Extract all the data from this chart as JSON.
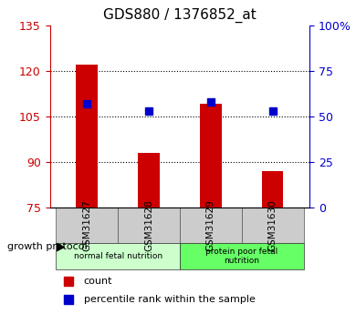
{
  "title": "GDS880 / 1376852_at",
  "samples": [
    "GSM31627",
    "GSM31628",
    "GSM31629",
    "GSM31630"
  ],
  "counts": [
    122,
    93,
    109,
    87
  ],
  "percentiles": [
    57,
    53,
    58,
    53
  ],
  "left_ylim": [
    75,
    135
  ],
  "left_yticks": [
    75,
    90,
    105,
    120,
    135
  ],
  "right_ylim": [
    0,
    100
  ],
  "right_yticks": [
    0,
    25,
    50,
    75,
    100
  ],
  "right_yticklabels": [
    "0",
    "25",
    "50",
    "75",
    "100%"
  ],
  "bar_color": "#cc0000",
  "marker_color": "#0000cc",
  "bar_width": 0.35,
  "groups": [
    {
      "label": "normal fetal nutrition",
      "indices": [
        0,
        1
      ],
      "color": "#ccffcc"
    },
    {
      "label": "protein poor fetal\nnutrition",
      "indices": [
        2,
        3
      ],
      "color": "#66ff66"
    }
  ],
  "legend_items": [
    {
      "label": "count",
      "color": "#cc0000"
    },
    {
      "label": "percentile rank within the sample",
      "color": "#0000cc"
    }
  ],
  "growth_protocol_label": "growth protocol",
  "left_label_color": "#cc0000",
  "right_label_color": "#0000cc"
}
